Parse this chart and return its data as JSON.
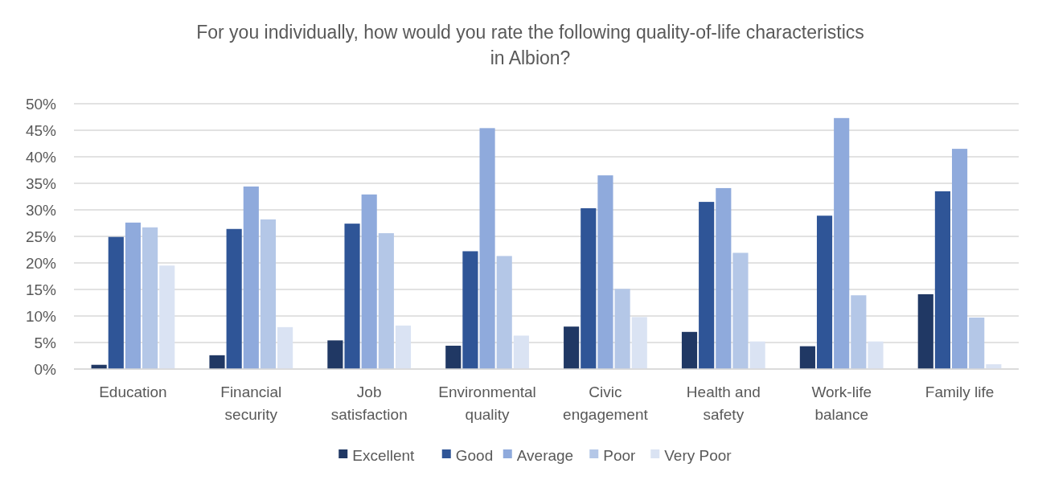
{
  "chart_data": {
    "type": "bar",
    "title": "For you individually, how would you rate the following quality-of-life characteristics in Albion?",
    "categories": [
      "Education",
      "Financial security",
      "Job satisfaction",
      "Environmental quality",
      "Civic engagement",
      "Health and safety",
      "Work-life balance",
      "Family life"
    ],
    "series": [
      {
        "name": "Excellent",
        "color": "#203864",
        "values": [
          0.8,
          2.6,
          5.4,
          4.4,
          8.0,
          7.0,
          4.3,
          14.1
        ]
      },
      {
        "name": "Good",
        "color": "#2f5597",
        "values": [
          24.9,
          26.4,
          27.4,
          22.2,
          30.3,
          31.5,
          28.9,
          33.5
        ]
      },
      {
        "name": "Average",
        "color": "#8faadc",
        "values": [
          27.6,
          34.4,
          32.9,
          45.4,
          36.5,
          34.1,
          47.3,
          41.5
        ]
      },
      {
        "name": "Poor",
        "color": "#b4c7e7",
        "values": [
          26.7,
          28.2,
          25.6,
          21.3,
          15.1,
          21.9,
          13.9,
          9.7
        ]
      },
      {
        "name": "Very Poor",
        "color": "#dae3f3",
        "values": [
          19.5,
          7.9,
          8.2,
          6.3,
          9.8,
          5.2,
          5.2,
          0.9
        ]
      }
    ],
    "ylim": [
      0,
      50
    ],
    "yticks": [
      {
        "value": 0,
        "label": "0%"
      },
      {
        "value": 5,
        "label": "5%"
      },
      {
        "value": 10,
        "label": "10%"
      },
      {
        "value": 15,
        "label": "15%"
      },
      {
        "value": 20,
        "label": "20%"
      },
      {
        "value": 25,
        "label": "25%"
      },
      {
        "value": 30,
        "label": "30%"
      },
      {
        "value": 35,
        "label": "35%"
      },
      {
        "value": 40,
        "label": "40%"
      },
      {
        "value": 45,
        "label": "45%"
      },
      {
        "value": 50,
        "label": "50%"
      }
    ],
    "grid": "y",
    "legend": "bottom"
  }
}
